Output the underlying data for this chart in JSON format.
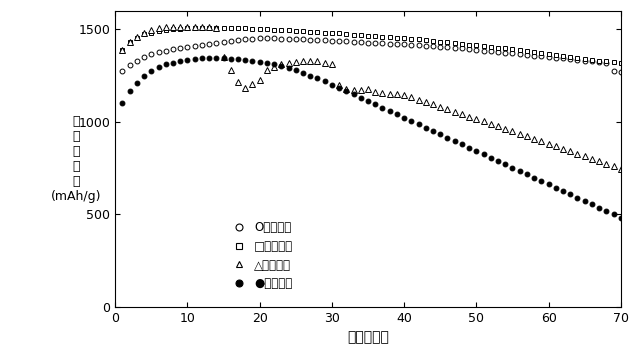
{
  "title": "",
  "xlabel": "サイクル数",
  "ylabel_lines": [
    "充",
    "放",
    "電",
    "容",
    "量",
    "(mAh/g)"
  ],
  "xlim": [
    0,
    70
  ],
  "ylim": [
    0,
    1600
  ],
  "xticks": [
    0,
    10,
    20,
    30,
    40,
    50,
    60,
    70
  ],
  "yticks": [
    0,
    500,
    1000,
    1500
  ],
  "legend_labels": [
    "O：負極６",
    "□：負極７",
    "△：負極８",
    "●：負極９"
  ],
  "neg6_x": [
    1,
    2,
    3,
    4,
    5,
    6,
    7,
    8,
    9,
    10,
    11,
    12,
    13,
    14,
    15,
    16,
    17,
    18,
    19,
    20,
    21,
    22,
    23,
    24,
    25,
    26,
    27,
    28,
    29,
    30,
    31,
    32,
    33,
    34,
    35,
    36,
    37,
    38,
    39,
    40,
    41,
    42,
    43,
    44,
    45,
    46,
    47,
    48,
    49,
    50,
    51,
    52,
    53,
    54,
    55,
    56,
    57,
    58,
    59,
    60,
    61,
    62,
    63,
    64,
    65,
    66,
    67,
    68,
    69,
    70
  ],
  "neg6_y": [
    1275,
    1305,
    1330,
    1350,
    1365,
    1375,
    1385,
    1395,
    1400,
    1405,
    1410,
    1415,
    1420,
    1425,
    1430,
    1435,
    1440,
    1445,
    1448,
    1450,
    1450,
    1450,
    1448,
    1447,
    1446,
    1445,
    1444,
    1442,
    1440,
    1438,
    1436,
    1434,
    1432,
    1430,
    1428,
    1426,
    1424,
    1422,
    1420,
    1418,
    1415,
    1413,
    1410,
    1408,
    1405,
    1402,
    1399,
    1396,
    1392,
    1388,
    1385,
    1382,
    1378,
    1374,
    1370,
    1366,
    1362,
    1358,
    1354,
    1350,
    1346,
    1342,
    1338,
    1334,
    1330,
    1326,
    1322,
    1318,
    1272,
    1268
  ],
  "neg7_x": [
    1,
    2,
    3,
    4,
    5,
    6,
    7,
    8,
    9,
    10,
    11,
    12,
    13,
    14,
    15,
    16,
    17,
    18,
    19,
    20,
    21,
    22,
    23,
    24,
    25,
    26,
    27,
    28,
    29,
    30,
    31,
    32,
    33,
    34,
    35,
    36,
    37,
    38,
    39,
    40,
    41,
    42,
    43,
    44,
    45,
    46,
    47,
    48,
    49,
    50,
    51,
    52,
    53,
    54,
    55,
    56,
    57,
    58,
    59,
    60,
    61,
    62,
    63,
    64,
    65,
    66,
    67,
    68,
    69,
    70
  ],
  "neg7_y": [
    1390,
    1430,
    1455,
    1472,
    1482,
    1490,
    1495,
    1500,
    1503,
    1505,
    1507,
    1508,
    1508,
    1508,
    1507,
    1506,
    1505,
    1504,
    1503,
    1502,
    1500,
    1498,
    1496,
    1494,
    1491,
    1489,
    1487,
    1484,
    1482,
    1479,
    1477,
    1474,
    1471,
    1469,
    1466,
    1463,
    1460,
    1457,
    1454,
    1451,
    1448,
    1445,
    1441,
    1437,
    1433,
    1429,
    1425,
    1421,
    1417,
    1413,
    1409,
    1405,
    1400,
    1396,
    1391,
    1386,
    1381,
    1376,
    1371,
    1366,
    1361,
    1356,
    1351,
    1346,
    1341,
    1336,
    1331,
    1326,
    1321,
    1316
  ],
  "neg8_x": [
    1,
    2,
    3,
    4,
    5,
    6,
    7,
    8,
    9,
    10,
    11,
    12,
    13,
    14,
    15,
    16,
    17,
    18,
    19,
    20,
    21,
    22,
    23,
    24,
    25,
    26,
    27,
    28,
    29,
    30,
    31,
    32,
    33,
    34,
    35,
    36,
    37,
    38,
    39,
    40,
    41,
    42,
    43,
    44,
    45,
    46,
    47,
    48,
    49,
    50,
    51,
    52,
    53,
    54,
    55,
    56,
    57,
    58,
    59,
    60,
    61,
    62,
    63,
    64,
    65,
    66,
    67,
    68,
    69,
    70
  ],
  "neg8_y": [
    1390,
    1430,
    1460,
    1480,
    1495,
    1505,
    1510,
    1512,
    1513,
    1513,
    1512,
    1511,
    1510,
    1509,
    1350,
    1280,
    1215,
    1185,
    1205,
    1225,
    1280,
    1295,
    1310,
    1320,
    1325,
    1330,
    1330,
    1328,
    1320,
    1310,
    1200,
    1175,
    1170,
    1172,
    1175,
    1160,
    1155,
    1150,
    1148,
    1145,
    1135,
    1120,
    1108,
    1095,
    1082,
    1068,
    1055,
    1042,
    1028,
    1015,
    1002,
    988,
    975,
    962,
    948,
    935,
    921,
    908,
    894,
    880,
    867,
    853,
    840,
    826,
    813,
    800,
    786,
    773,
    760,
    746
  ],
  "neg9_x": [
    1,
    2,
    3,
    4,
    5,
    6,
    7,
    8,
    9,
    10,
    11,
    12,
    13,
    14,
    15,
    16,
    17,
    18,
    19,
    20,
    21,
    22,
    23,
    24,
    25,
    26,
    27,
    28,
    29,
    30,
    31,
    32,
    33,
    34,
    35,
    36,
    37,
    38,
    39,
    40,
    41,
    42,
    43,
    44,
    45,
    46,
    47,
    48,
    49,
    50,
    51,
    52,
    53,
    54,
    55,
    56,
    57,
    58,
    59,
    60,
    61,
    62,
    63,
    64,
    65,
    66,
    67,
    68,
    69,
    70
  ],
  "neg9_y": [
    1100,
    1165,
    1210,
    1250,
    1275,
    1295,
    1310,
    1320,
    1328,
    1335,
    1340,
    1342,
    1343,
    1343,
    1342,
    1340,
    1338,
    1335,
    1330,
    1325,
    1318,
    1310,
    1300,
    1290,
    1278,
    1265,
    1250,
    1235,
    1218,
    1200,
    1182,
    1165,
    1148,
    1130,
    1112,
    1094,
    1076,
    1058,
    1040,
    1022,
    1004,
    986,
    968,
    950,
    932,
    914,
    896,
    878,
    860,
    842,
    824,
    806,
    788,
    770,
    752,
    734,
    716,
    698,
    680,
    662,
    644,
    626,
    608,
    590,
    572,
    554,
    536,
    518,
    500,
    482
  ]
}
